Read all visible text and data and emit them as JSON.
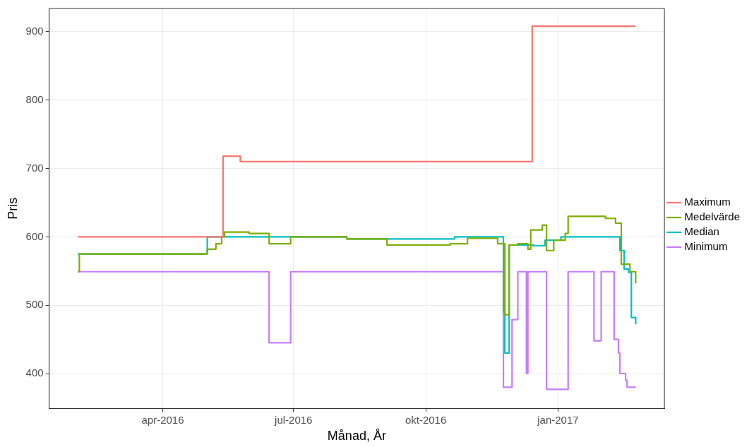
{
  "chart_data": {
    "type": "step",
    "xlabel": "Månad, År",
    "ylabel": "Pris",
    "xlim": [
      "2016-01-13",
      "2017-03-16"
    ],
    "xticks": [
      {
        "value": "2016-04-01",
        "label": "apr-2016"
      },
      {
        "value": "2016-07-01",
        "label": "jul-2016"
      },
      {
        "value": "2016-10-01",
        "label": "okt-2016"
      },
      {
        "value": "2017-01-01",
        "label": "jan-2017"
      }
    ],
    "ylim": [
      349,
      934
    ],
    "yticks": [
      400,
      500,
      600,
      700,
      800,
      900
    ],
    "grid": true,
    "legend": "right",
    "line_style": "solid",
    "marker": "none",
    "series": [
      {
        "name": "Maximum",
        "color": "#f8766d",
        "x": [
          "2016-02-02",
          "2016-05-13",
          "2016-05-25",
          "2016-12-14",
          "2017-02-24"
        ],
        "values": [
          600,
          718,
          710,
          908,
          908
        ]
      },
      {
        "name": "Medelvärde",
        "color": "#7cae00",
        "x": [
          "2016-02-02",
          "2016-02-03",
          "2016-05-02",
          "2016-05-08",
          "2016-05-12",
          "2016-05-14",
          "2016-05-31",
          "2016-06-14",
          "2016-06-29",
          "2016-08-07",
          "2016-09-04",
          "2016-10-18",
          "2016-10-30",
          "2016-11-20",
          "2016-11-25",
          "2016-11-28",
          "2016-12-04",
          "2016-12-11",
          "2016-12-13",
          "2016-12-21",
          "2016-12-24",
          "2016-12-29",
          "2017-01-06",
          "2017-01-08",
          "2017-02-03",
          "2017-02-10",
          "2017-02-14",
          "2017-02-20",
          "2017-02-24"
        ],
        "values": [
          549,
          575,
          582,
          590,
          600,
          607,
          605,
          590,
          600,
          597,
          588,
          590,
          598,
          590,
          486,
          588,
          590,
          582,
          610,
          617,
          580,
          595,
          605,
          630,
          627,
          620,
          560,
          549,
          532
        ]
      },
      {
        "name": "Median",
        "color": "#00bfc4",
        "x": [
          "2016-02-02",
          "2016-05-02",
          "2016-08-07",
          "2016-10-21",
          "2016-11-24",
          "2016-11-25",
          "2016-11-28",
          "2016-12-15",
          "2016-12-23",
          "2017-01-03",
          "2017-02-13",
          "2017-02-16",
          "2017-02-19",
          "2017-02-21",
          "2017-02-24"
        ],
        "values": [
          575,
          600,
          597,
          600,
          490,
          430,
          588,
          587,
          595,
          600,
          580,
          553,
          548,
          482,
          472
        ]
      },
      {
        "name": "Minimum",
        "color": "#c77cff",
        "x": [
          "2016-02-02",
          "2016-06-14",
          "2016-06-29",
          "2016-11-24",
          "2016-11-30",
          "2016-12-04",
          "2016-12-10",
          "2016-12-11",
          "2016-12-24",
          "2017-01-08",
          "2017-01-26",
          "2017-01-31",
          "2017-02-09",
          "2017-02-12",
          "2017-02-13",
          "2017-02-17",
          "2017-02-18",
          "2017-02-24"
        ],
        "values": [
          549,
          445,
          549,
          380,
          479,
          549,
          400,
          549,
          377,
          549,
          448,
          549,
          450,
          430,
          400,
          390,
          380,
          380
        ]
      }
    ]
  }
}
